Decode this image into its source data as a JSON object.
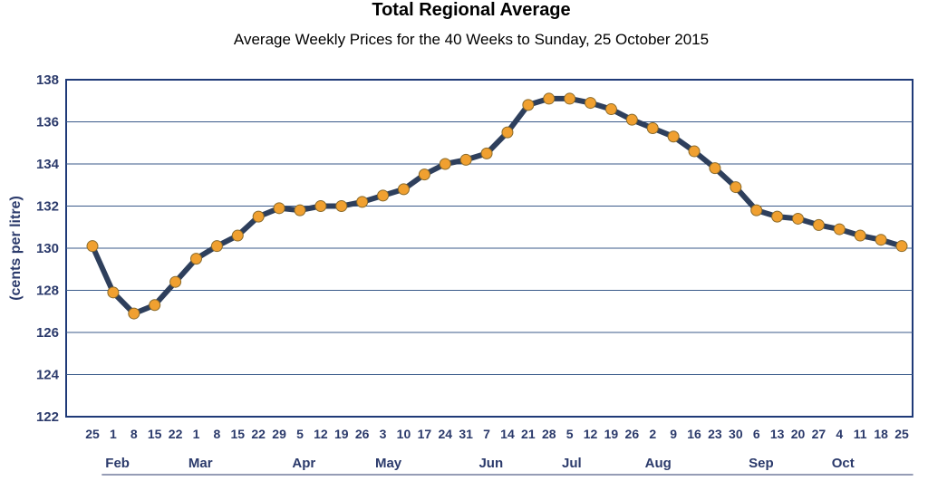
{
  "chart_data": {
    "type": "line",
    "title": "Total Regional Average",
    "subtitle": "Average Weekly Prices for the 40 Weeks to Sunday, 25 October 2015",
    "ylabel": "(cents per litre)",
    "xlabel": "",
    "ylim": [
      122,
      138
    ],
    "yticks": [
      122,
      124,
      126,
      128,
      130,
      132,
      134,
      136,
      138
    ],
    "grid": true,
    "legend": "none",
    "colors": {
      "line": "#2e3f5c",
      "marker": "#f0a030",
      "marker_edge": "#8a6a2a",
      "grid": "#3a5a8a",
      "axis_text": "#2b3a6b"
    },
    "x": [
      "25",
      "1",
      "8",
      "15",
      "22",
      "1",
      "8",
      "15",
      "22",
      "29",
      "5",
      "12",
      "19",
      "26",
      "3",
      "10",
      "17",
      "24",
      "31",
      "7",
      "14",
      "21",
      "28",
      "5",
      "12",
      "19",
      "26",
      "2",
      "9",
      "16",
      "23",
      "30",
      "6",
      "13",
      "20",
      "27",
      "4",
      "11",
      "18",
      "25"
    ],
    "months": [
      {
        "label": "Feb",
        "start": 1,
        "end": 4
      },
      {
        "label": "Mar",
        "start": 5,
        "end": 9
      },
      {
        "label": "Apr",
        "start": 10,
        "end": 13
      },
      {
        "label": "May",
        "start": 14,
        "end": 18
      },
      {
        "label": "Jun",
        "start": 19,
        "end": 22
      },
      {
        "label": "Jul",
        "start": 23,
        "end": 26
      },
      {
        "label": "Aug",
        "start": 27,
        "end": 31
      },
      {
        "label": "Sep",
        "start": 32,
        "end": 35
      },
      {
        "label": "Oct",
        "start": 36,
        "end": 39
      }
    ],
    "series": [
      {
        "values": [
          130.1,
          127.9,
          126.9,
          127.3,
          128.4,
          129.5,
          130.1,
          130.6,
          131.5,
          131.9,
          131.8,
          132.0,
          132.0,
          132.2,
          132.5,
          132.8,
          133.5,
          134.0,
          134.2,
          134.5,
          135.5,
          136.8,
          137.1,
          137.1,
          136.9,
          136.6,
          136.1,
          135.7,
          135.3,
          134.6,
          133.8,
          132.9,
          131.8,
          131.5,
          131.4,
          131.1,
          130.9,
          130.6,
          130.4,
          130.1
        ]
      }
    ]
  }
}
